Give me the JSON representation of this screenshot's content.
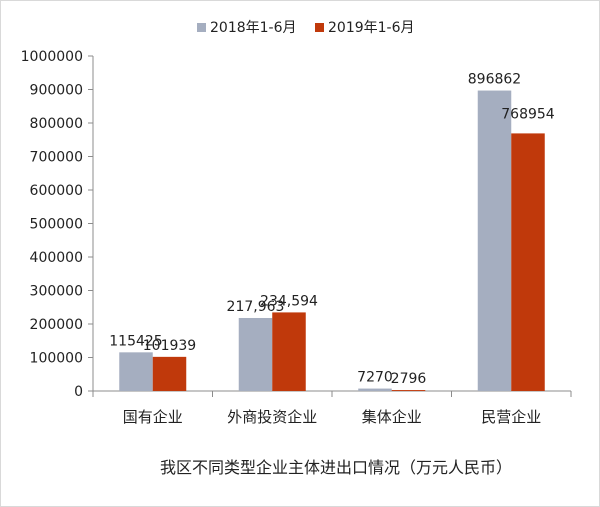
{
  "chart_data": {
    "type": "bar",
    "title": "我区不同类型企业主体进出口情况（万元人民币）",
    "categories": [
      "国有企业",
      "外商投资企业",
      "集体企业",
      "民营企业"
    ],
    "series": [
      {
        "name": "2018年1-6月",
        "color": "#a5aec0",
        "values": [
          115425,
          217963,
          7270,
          896862
        ],
        "labels": [
          "115425",
          "217,963",
          "7270",
          "896862"
        ]
      },
      {
        "name": "2019年1-6月",
        "color": "#c0390b",
        "values": [
          101939,
          234594,
          2796,
          768954
        ],
        "labels": [
          "101939",
          "234,594",
          "2796",
          "768954"
        ]
      }
    ],
    "ylim": [
      0,
      1000000
    ],
    "yticks": [
      0,
      100000,
      200000,
      300000,
      400000,
      500000,
      600000,
      700000,
      800000,
      900000,
      1000000
    ],
    "ytick_labels": [
      "0",
      "100000",
      "200000",
      "300000",
      "400000",
      "500000",
      "600000",
      "700000",
      "800000",
      "900000",
      "1000000"
    ],
    "xlabel": "",
    "ylabel": "",
    "grid": false,
    "legend_position": "top"
  }
}
